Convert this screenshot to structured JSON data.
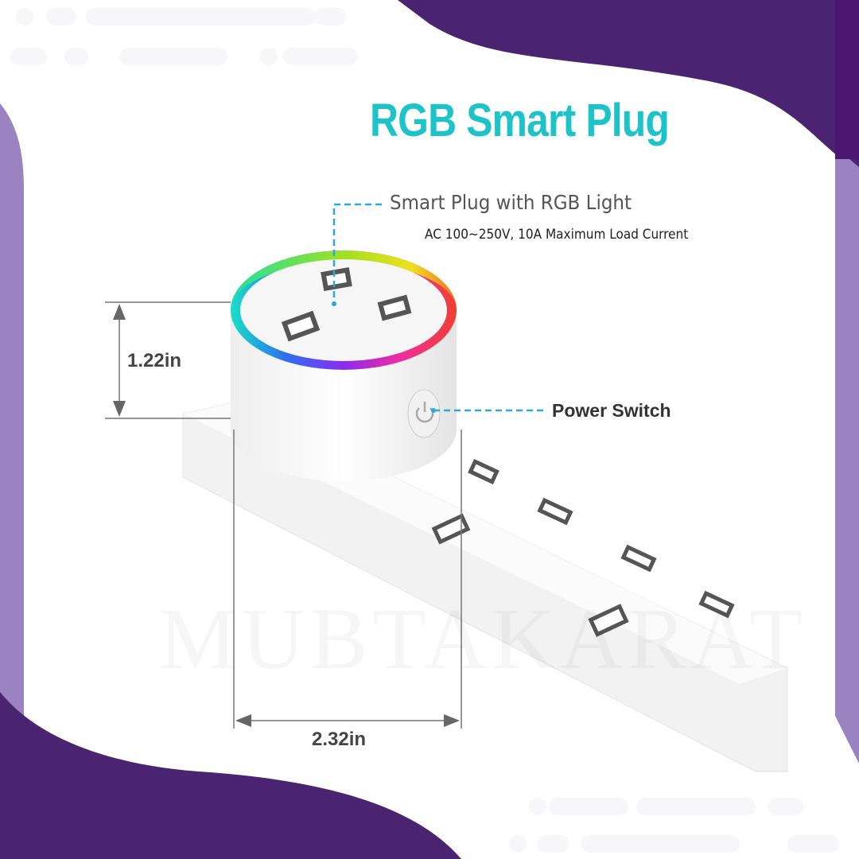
{
  "title": "RGB Smart Plug",
  "callouts": {
    "light": "Smart Plug with RGB Light",
    "spec": "AC 100~250V, 10A Maximum Load Current",
    "switch": "Power Switch"
  },
  "dimensions": {
    "height": "1.22in",
    "width": "2.32in"
  },
  "watermark": "MUBTAKARAT",
  "colors": {
    "title": "#1cc3c8",
    "purple_dark": "#4a2470",
    "purple_light": "#9b82c0",
    "callout_line": "#2aa8e0"
  }
}
